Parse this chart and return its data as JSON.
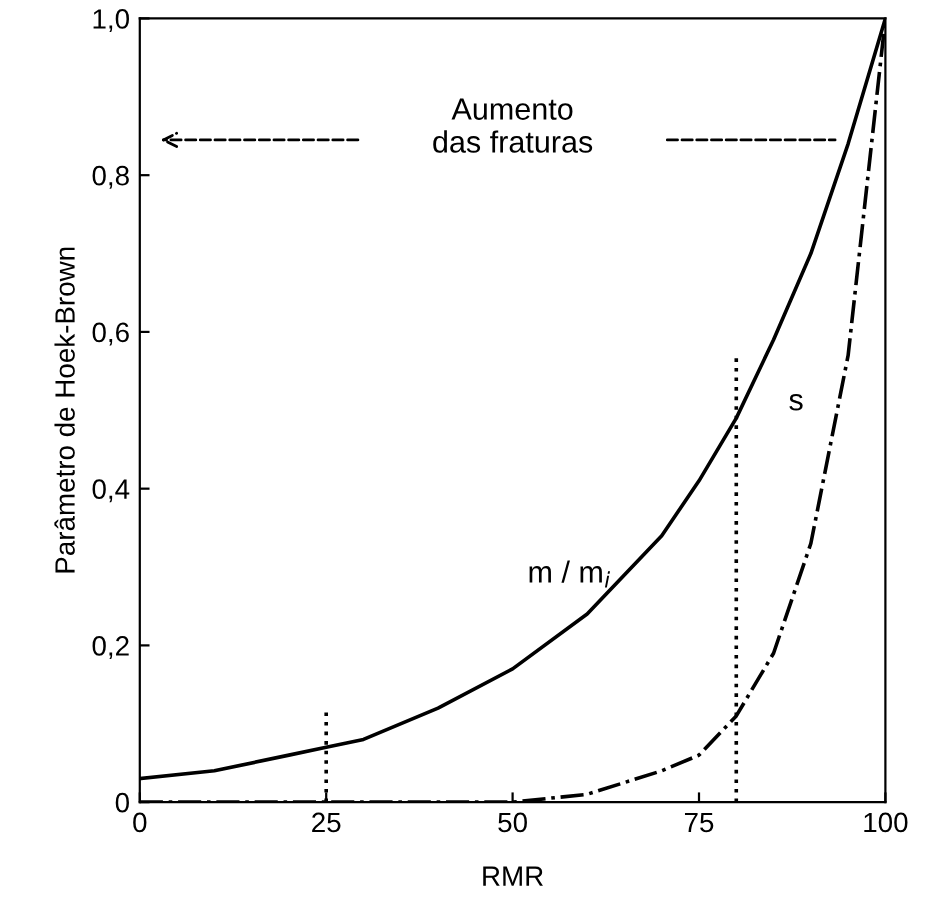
{
  "chart_data": {
    "type": "line",
    "xlabel": "RMR",
    "ylabel": "Parâmetro de Hoek-Brown",
    "xlim": [
      0,
      100
    ],
    "xticks": [
      0,
      25,
      50,
      75,
      100
    ],
    "ylim": [
      0,
      1.0
    ],
    "yticks": [
      0,
      {
        "value": 0.2,
        "label": "0,2"
      },
      {
        "value": 0.4,
        "label": "0,4"
      },
      {
        "value": 0.6,
        "label": "0,6"
      },
      {
        "value": 0.8,
        "label": "0,8"
      },
      {
        "value": 1.0,
        "label": "1,0"
      }
    ],
    "grid": false,
    "legend": false,
    "marker": "none",
    "annotations": [
      "Aumento\ndas fraturas"
    ],
    "series": [
      {
        "name": "m / m$_{i}$",
        "color": "#000000",
        "line_style": "solid",
        "x": [
          0,
          10,
          20,
          25,
          30,
          40,
          50,
          60,
          70,
          75,
          80,
          85,
          90,
          95,
          100
        ],
        "values": [
          0.03,
          0.04,
          0.06,
          0.07,
          0.08,
          0.12,
          0.17,
          0.24,
          0.34,
          0.41,
          0.49,
          0.59,
          0.7,
          0.84,
          1.0
        ]
      },
      {
        "name": "s",
        "color": "#000000",
        "line_style": "dashed",
        "x": [
          0,
          50,
          60,
          70,
          75,
          80,
          85,
          90,
          95,
          100
        ],
        "values": [
          0.0,
          0.0,
          0.01,
          0.04,
          0.06,
          0.11,
          0.19,
          0.33,
          0.57,
          1.0
        ]
      },
      {
        "color": "#000000",
        "line_style": "dotted",
        "x": [
          25,
          25
        ],
        "values": [
          0,
          0.12
        ]
      },
      {
        "color": "#000000",
        "line_style": "dotted",
        "x": [
          80,
          80
        ],
        "values": [
          0,
          0.57
        ]
      }
    ]
  }
}
